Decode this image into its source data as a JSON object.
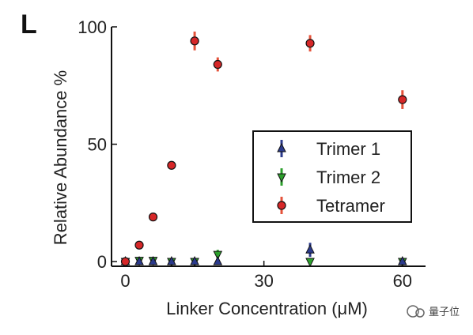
{
  "panel_label": "L",
  "watermark": {
    "text": "量子位"
  },
  "colors": {
    "trimer1": "#2b3a8c",
    "trimer2": "#2ca02c",
    "tetramer": "#d62728",
    "tetramer_errbar": "#e5533b",
    "axis": "#111111"
  },
  "chart_data": {
    "type": "scatter",
    "xlabel": "Linker Concentration (μM)",
    "ylabel": "Relative Abundance %",
    "xlim": [
      -3,
      65
    ],
    "ylim": [
      -2,
      100
    ],
    "xticks": [
      0,
      30,
      60
    ],
    "yticks": [
      0,
      50,
      100
    ],
    "grid": false,
    "legend_position": "center-right",
    "series": [
      {
        "name": "Trimer 1",
        "marker": "triangle-up",
        "x": [
          0,
          3,
          6,
          10,
          15,
          20,
          40,
          60
        ],
        "y": [
          0,
          0,
          0,
          0,
          0,
          0,
          5,
          0
        ],
        "err": [
          0,
          0,
          0.5,
          0,
          0,
          1,
          3,
          0
        ]
      },
      {
        "name": "Trimer 2",
        "marker": "triangle-down",
        "x": [
          0,
          3,
          6,
          10,
          15,
          20,
          40,
          60
        ],
        "y": [
          0,
          0.5,
          0.5,
          0,
          0,
          3,
          0,
          0
        ],
        "err": [
          0,
          0.5,
          0.5,
          0,
          0,
          2,
          0,
          0
        ]
      },
      {
        "name": "Tetramer",
        "marker": "circle",
        "x": [
          0,
          3,
          6,
          10,
          15,
          20,
          40,
          60
        ],
        "y": [
          0,
          7,
          19,
          41,
          94,
          84,
          93,
          69
        ],
        "err": [
          0,
          0,
          0,
          1.5,
          4,
          3,
          3.5,
          4
        ]
      }
    ]
  }
}
